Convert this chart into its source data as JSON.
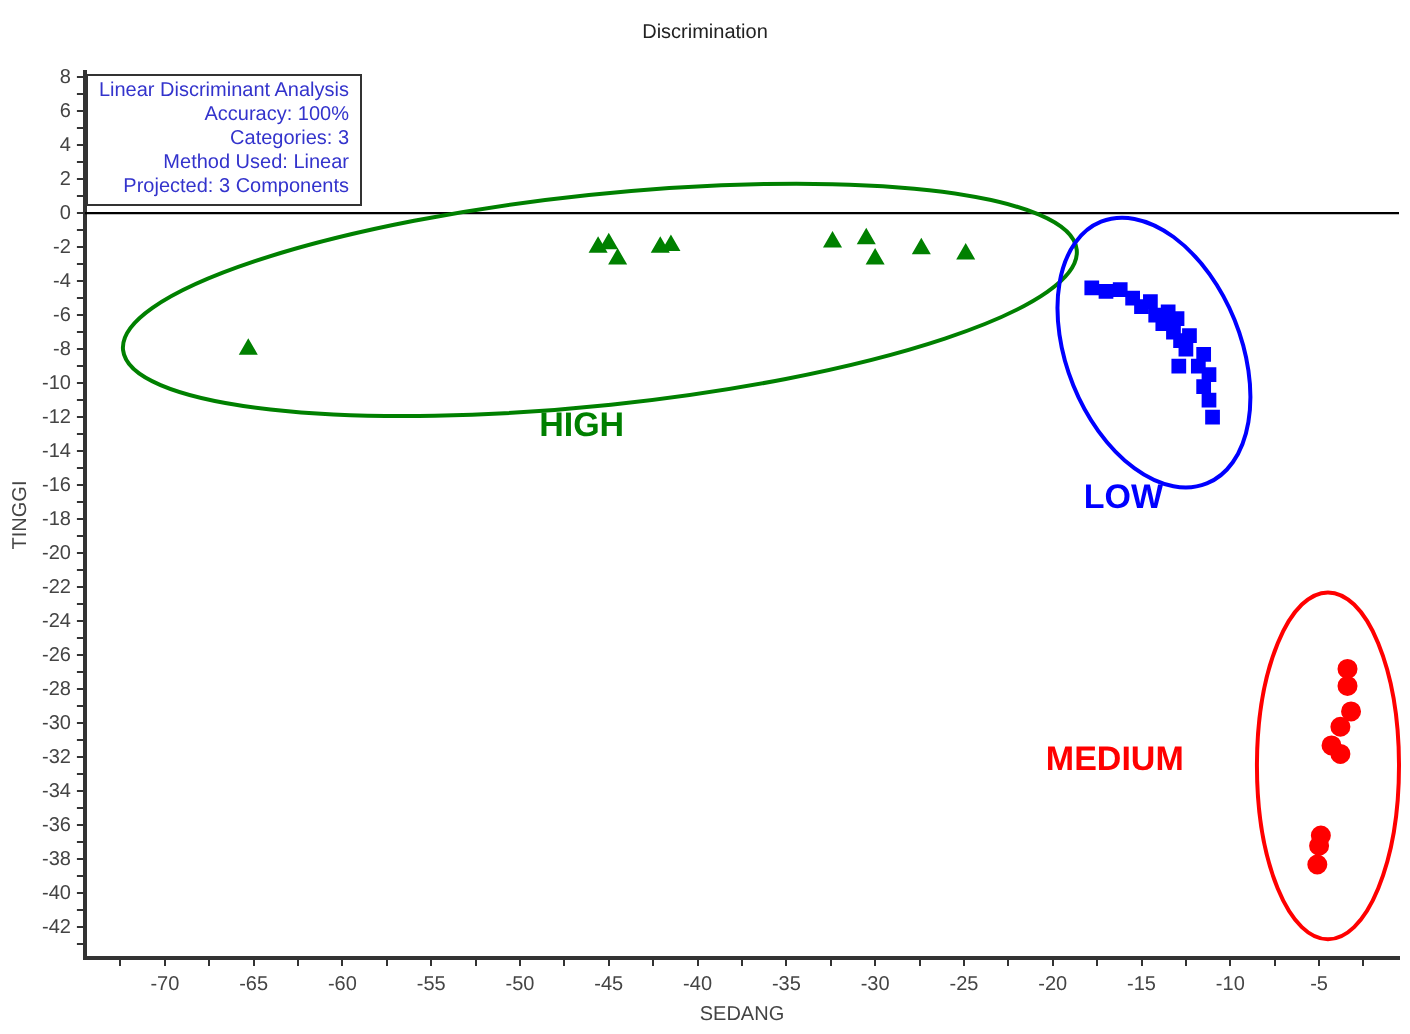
{
  "chart_data": {
    "type": "scatter",
    "title": "Discrimination",
    "xlabel": "SEDANG",
    "ylabel": "TINGGI",
    "xlim": [
      -74.5,
      -0.5
    ],
    "ylim": [
      -43.8,
      8.3
    ],
    "xticks": [
      -70,
      -65,
      -60,
      -55,
      -50,
      -45,
      -40,
      -35,
      -30,
      -25,
      -20,
      -15,
      -10,
      -5,
      {
        "value": -72.5,
        "label": null
      },
      {
        "value": -67.5,
        "label": null
      },
      {
        "value": -62.5,
        "label": null
      },
      {
        "value": -57.5,
        "label": null
      },
      {
        "value": -52.5,
        "label": null
      },
      {
        "value": -47.5,
        "label": null
      },
      {
        "value": -42.5,
        "label": null
      },
      {
        "value": -37.5,
        "label": null
      },
      {
        "value": -32.5,
        "label": null
      },
      {
        "value": -27.5,
        "label": null
      },
      {
        "value": -22.5,
        "label": null
      },
      {
        "value": -17.5,
        "label": null
      },
      {
        "value": -12.5,
        "label": null
      },
      {
        "value": -7.5,
        "label": null
      },
      {
        "value": -2.5,
        "label": null
      }
    ],
    "yticks": [
      8,
      6,
      4,
      2,
      0,
      -2,
      -4,
      -6,
      -8,
      -10,
      -12,
      -14,
      -16,
      -18,
      -20,
      -22,
      -24,
      -26,
      -28,
      -30,
      -32,
      -34,
      -36,
      -38,
      -40,
      -42,
      {
        "value": 7,
        "label": null
      },
      {
        "value": 5,
        "label": null
      },
      {
        "value": 3,
        "label": null
      },
      {
        "value": 1,
        "label": null
      },
      {
        "value": -1,
        "label": null
      },
      {
        "value": -3,
        "label": null
      },
      {
        "value": -5,
        "label": null
      },
      {
        "value": -7,
        "label": null
      },
      {
        "value": -9,
        "label": null
      },
      {
        "value": -11,
        "label": null
      },
      {
        "value": -13,
        "label": null
      },
      {
        "value": -15,
        "label": null
      },
      {
        "value": -17,
        "label": null
      },
      {
        "value": -19,
        "label": null
      },
      {
        "value": -21,
        "label": null
      },
      {
        "value": -23,
        "label": null
      },
      {
        "value": -25,
        "label": null
      },
      {
        "value": -27,
        "label": null
      },
      {
        "value": -29,
        "label": null
      },
      {
        "value": -31,
        "label": null
      },
      {
        "value": -33,
        "label": null
      },
      {
        "value": -35,
        "label": null
      },
      {
        "value": -37,
        "label": null
      },
      {
        "value": -39,
        "label": null
      },
      {
        "value": -41,
        "label": null
      },
      {
        "value": -43,
        "label": null
      }
    ],
    "grid": false,
    "legend": false,
    "ref_lines": [
      {
        "axis": "y",
        "value": 0,
        "color": "#000000"
      }
    ],
    "annotations": [
      "Linear Discriminant Analysis",
      "Accuracy:  100%",
      "Categories:  3",
      "Method Used:  Linear",
      "Projected:  3 Components"
    ],
    "series": [
      {
        "name": "HIGH",
        "color": "#008000",
        "marker": "triangle",
        "x": [
          -65.3,
          -45.6,
          -44.5,
          -42.1,
          -45.0,
          -41.5,
          -32.4,
          -30.0,
          -27.4,
          -24.9,
          -30.5
        ],
        "values": [
          -8.0,
          -2.0,
          -2.7,
          -2.0,
          -1.8,
          -1.9,
          -1.7,
          -2.7,
          -2.1,
          -2.4,
          -1.5
        ]
      },
      {
        "name": "LOW",
        "color": "#0000ff",
        "marker": "square",
        "x": [
          -17.8,
          -17.0,
          -16.2,
          -15.5,
          -15.0,
          -14.5,
          -14.2,
          -13.8,
          -13.5,
          -13.2,
          -13.0,
          -12.8,
          -12.5,
          -12.3,
          -12.9,
          -11.8,
          -11.5,
          -11.2,
          -11.5,
          -11.2,
          -11.0
        ],
        "values": [
          -4.4,
          -4.6,
          -4.5,
          -5.0,
          -5.5,
          -5.2,
          -6.0,
          -6.5,
          -5.8,
          -7.0,
          -6.2,
          -7.5,
          -8.0,
          -7.2,
          -9.0,
          -9.0,
          -8.3,
          -9.5,
          -10.2,
          -11.0,
          -12.0
        ]
      },
      {
        "name": "MEDIUM",
        "color": "#ff0000",
        "marker": "circle",
        "x": [
          -3.4,
          -3.4,
          -3.2,
          -3.8,
          -4.3,
          -3.8,
          -4.9,
          -5.0,
          -5.1
        ],
        "values": [
          -26.8,
          -27.8,
          -29.3,
          -30.2,
          -31.3,
          -31.8,
          -36.6,
          -37.2,
          -38.3
        ]
      }
    ]
  }
}
